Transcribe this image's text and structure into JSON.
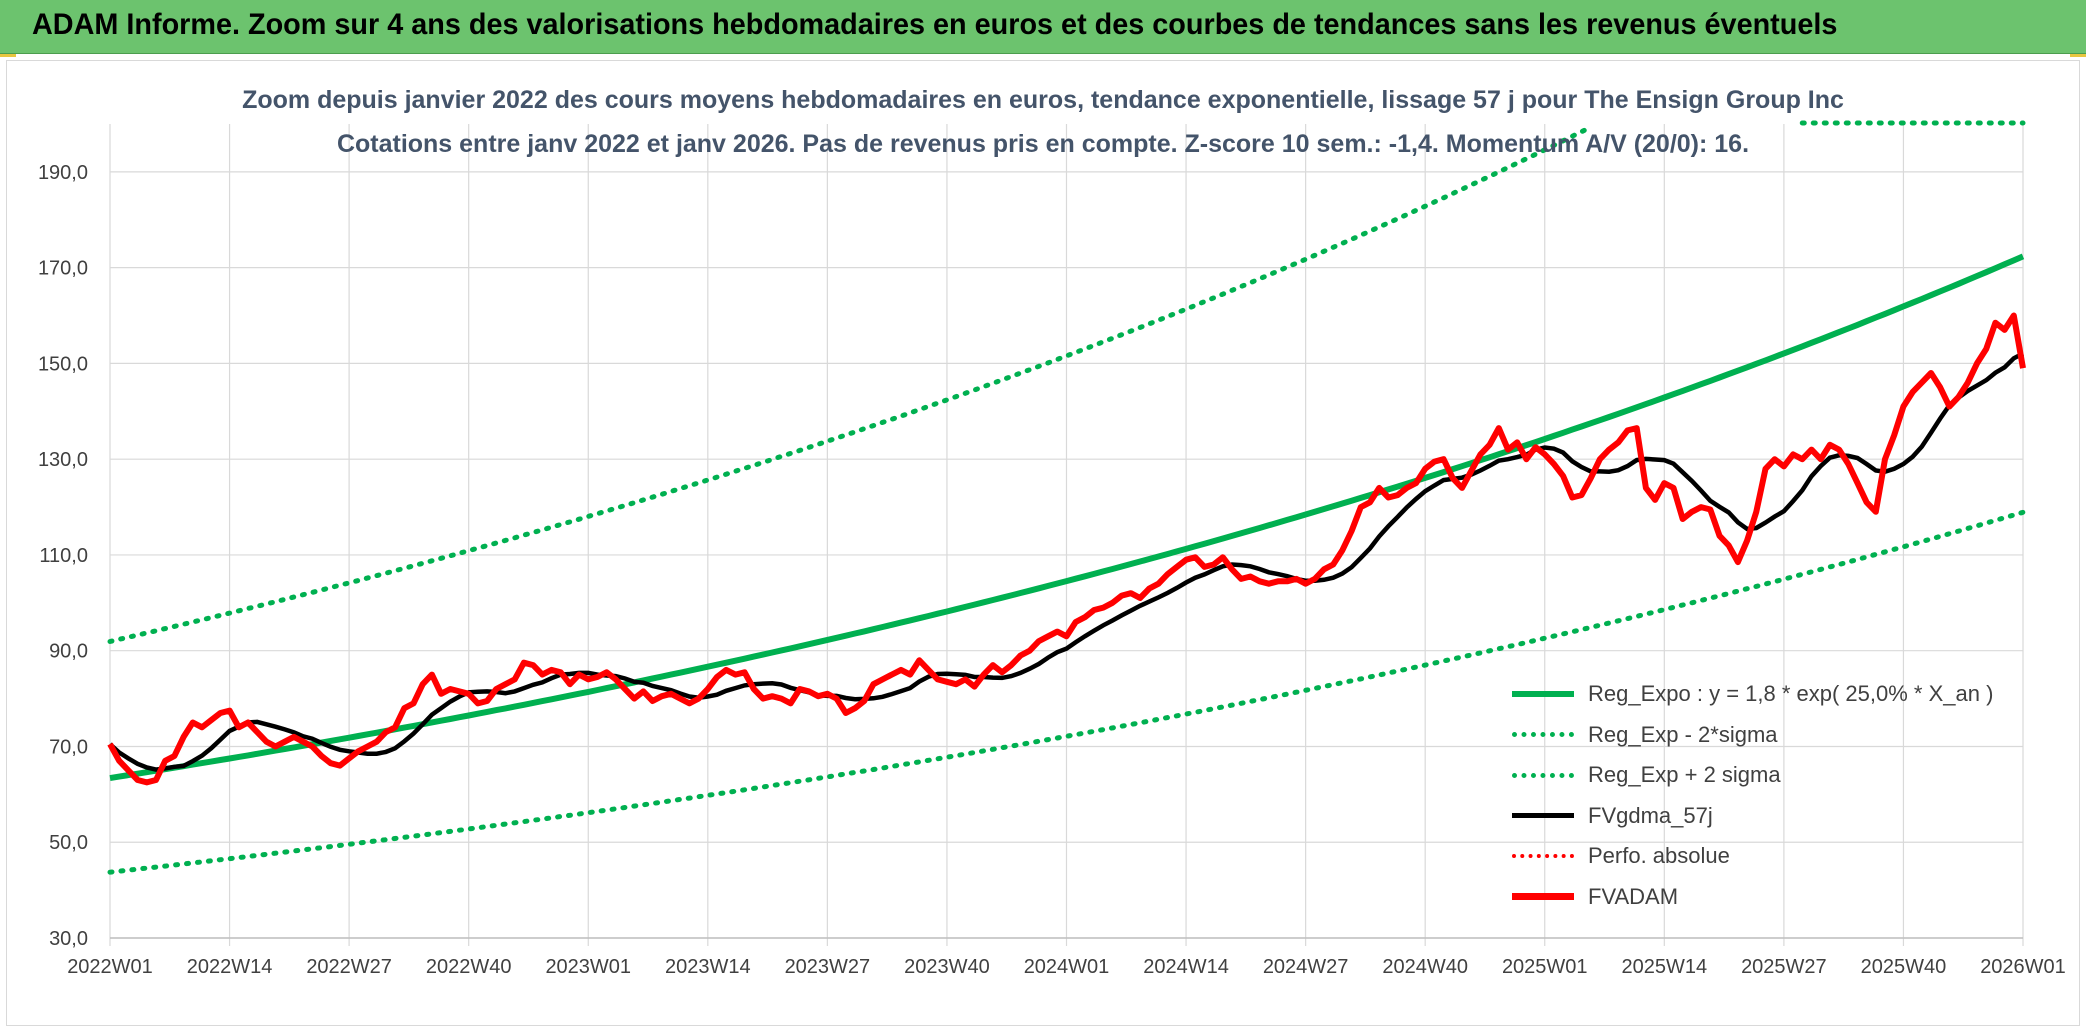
{
  "banner": {
    "title": "ADAM Informe. Zoom sur 4 ans des valorisations hebdomadaires en euros et des courbes de tendances sans les revenus éventuels"
  },
  "colors": {
    "banner": "#6cc36e",
    "trend": "#00b050",
    "smooth": "#000000",
    "price": "#ff0000",
    "grid": "#d9d9d9",
    "text": "#404040",
    "title": "#44546a"
  },
  "chart_data": {
    "type": "line",
    "title": "Zoom depuis janvier 2022 des cours moyens hebdomadaires en euros, tendance exponentielle, lissage 57 j pour The Ensign Group Inc",
    "subtitle": "Cotations entre janv 2022 et janv 2026. Pas de revenus pris en compte. Z-score 10 sem.: -1,4. Momentum A/V (20/0): 16.",
    "xlabel": "",
    "ylabel": "",
    "ylim": [
      30,
      200
    ],
    "yticks": [
      30,
      50,
      70,
      90,
      110,
      130,
      150,
      170,
      190
    ],
    "ytick_labels": [
      "30,0",
      "50,0",
      "70,0",
      "90,0",
      "110,0",
      "130,0",
      "150,0",
      "170,0",
      "190,0"
    ],
    "week_count": 209,
    "xtick_labels": [
      "2022W01",
      "2022W14",
      "2022W27",
      "2022W40",
      "2023W01",
      "2023W14",
      "2023W27",
      "2023W40",
      "2024W01",
      "2024W14",
      "2024W27",
      "2024W40",
      "2025W01",
      "2025W14",
      "2025W27",
      "2025W40",
      "2026W01"
    ],
    "xtick_index": [
      0,
      13,
      26,
      39,
      52,
      65,
      78,
      91,
      104,
      117,
      130,
      143,
      156,
      169,
      182,
      195,
      208
    ],
    "trend_model": {
      "a": 63.4,
      "annual_rate": 0.25,
      "weeks_per_year": 52
    },
    "band_factors": {
      "lower": 0.69,
      "upper": 1.45
    },
    "legend": [
      {
        "key": "trend",
        "label": "Reg_Expo : y = 1,8 * exp( 25,0% *  X_an )",
        "color": "#00b050",
        "style": "solid"
      },
      {
        "key": "lower",
        "label": "Reg_Exp - 2*sigma",
        "color": "#00b050",
        "style": "dotted"
      },
      {
        "key": "upper",
        "label": "Reg_Exp + 2 sigma",
        "color": "#00b050",
        "style": "dotted"
      },
      {
        "key": "smooth",
        "label": "FVgdma_57j",
        "color": "#000000",
        "style": "solid"
      },
      {
        "key": "perf",
        "label": "Perfo. absolue",
        "color": "#ff0000",
        "style": "dotted"
      },
      {
        "key": "price",
        "label": "FVADAM",
        "color": "#ff0000",
        "style": "solid"
      }
    ],
    "price_keypoints": [
      [
        0,
        70.5
      ],
      [
        1,
        67
      ],
      [
        2,
        65
      ],
      [
        3,
        63
      ],
      [
        4,
        62.5
      ],
      [
        5,
        63
      ],
      [
        6,
        67
      ],
      [
        7,
        68
      ],
      [
        8,
        72
      ],
      [
        9,
        75
      ],
      [
        10,
        74
      ],
      [
        11,
        75.5
      ],
      [
        12,
        77
      ],
      [
        13,
        77.5
      ],
      [
        14,
        74
      ],
      [
        15,
        75
      ],
      [
        16,
        73
      ],
      [
        17,
        71
      ],
      [
        18,
        70
      ],
      [
        19,
        71
      ],
      [
        20,
        72
      ],
      [
        21,
        71
      ],
      [
        22,
        70
      ],
      [
        23,
        68
      ],
      [
        24,
        66.5
      ],
      [
        25,
        66
      ],
      [
        26,
        67.5
      ],
      [
        27,
        69
      ],
      [
        28,
        70
      ],
      [
        29,
        71
      ],
      [
        30,
        73
      ],
      [
        31,
        74
      ],
      [
        32,
        78
      ],
      [
        33,
        79
      ],
      [
        34,
        83
      ],
      [
        35,
        85
      ],
      [
        36,
        81
      ],
      [
        37,
        82
      ],
      [
        38,
        81.5
      ],
      [
        39,
        81
      ],
      [
        40,
        79
      ],
      [
        41,
        79.5
      ],
      [
        42,
        82
      ],
      [
        43,
        83
      ],
      [
        44,
        84
      ],
      [
        45,
        87.5
      ],
      [
        46,
        87
      ],
      [
        47,
        85
      ],
      [
        48,
        86
      ],
      [
        49,
        85.5
      ],
      [
        50,
        83
      ],
      [
        51,
        85
      ],
      [
        52,
        84
      ],
      [
        53,
        84.5
      ],
      [
        54,
        85.5
      ],
      [
        55,
        84
      ],
      [
        56,
        82
      ],
      [
        57,
        80
      ],
      [
        58,
        81.5
      ],
      [
        59,
        79.5
      ],
      [
        60,
        80.5
      ],
      [
        61,
        81
      ],
      [
        62,
        80
      ],
      [
        63,
        79
      ],
      [
        64,
        80
      ],
      [
        65,
        82
      ],
      [
        66,
        84.5
      ],
      [
        67,
        86
      ],
      [
        68,
        85
      ],
      [
        69,
        85.5
      ],
      [
        70,
        82
      ],
      [
        71,
        80
      ],
      [
        72,
        80.5
      ],
      [
        73,
        80
      ],
      [
        74,
        79
      ],
      [
        75,
        82
      ],
      [
        76,
        81.5
      ],
      [
        77,
        80.5
      ],
      [
        78,
        81
      ],
      [
        79,
        80
      ],
      [
        80,
        77
      ],
      [
        81,
        78
      ],
      [
        82,
        79.5
      ],
      [
        83,
        83
      ],
      [
        84,
        84
      ],
      [
        85,
        85
      ],
      [
        86,
        86
      ],
      [
        87,
        85
      ],
      [
        88,
        88
      ],
      [
        89,
        86
      ],
      [
        90,
        84
      ],
      [
        91,
        83.5
      ],
      [
        92,
        83
      ],
      [
        93,
        84
      ],
      [
        94,
        82.5
      ],
      [
        95,
        85
      ],
      [
        96,
        87
      ],
      [
        97,
        85.5
      ],
      [
        98,
        87
      ],
      [
        99,
        89
      ],
      [
        100,
        90
      ],
      [
        101,
        92
      ],
      [
        102,
        93
      ],
      [
        103,
        94
      ],
      [
        104,
        93
      ],
      [
        105,
        96
      ],
      [
        106,
        97
      ],
      [
        107,
        98.5
      ],
      [
        108,
        99
      ],
      [
        109,
        100
      ],
      [
        110,
        101.5
      ],
      [
        111,
        102
      ],
      [
        112,
        101
      ],
      [
        113,
        103
      ],
      [
        114,
        104
      ],
      [
        115,
        106
      ],
      [
        116,
        107.5
      ],
      [
        117,
        109
      ],
      [
        118,
        109.5
      ],
      [
        119,
        107.5
      ],
      [
        120,
        108
      ],
      [
        121,
        109.5
      ],
      [
        122,
        107
      ],
      [
        123,
        105
      ],
      [
        124,
        105.5
      ],
      [
        125,
        104.5
      ],
      [
        126,
        104
      ],
      [
        127,
        104.5
      ],
      [
        128,
        104.5
      ],
      [
        129,
        105
      ],
      [
        130,
        104
      ],
      [
        131,
        105
      ],
      [
        132,
        107
      ],
      [
        133,
        108
      ],
      [
        134,
        111
      ],
      [
        135,
        115
      ],
      [
        136,
        120
      ],
      [
        137,
        121
      ],
      [
        138,
        124
      ],
      [
        139,
        122
      ],
      [
        140,
        122.5
      ],
      [
        141,
        124
      ],
      [
        142,
        125
      ],
      [
        143,
        128
      ],
      [
        144,
        129.5
      ],
      [
        145,
        130
      ],
      [
        146,
        126
      ],
      [
        147,
        124
      ],
      [
        148,
        127.5
      ],
      [
        149,
        131
      ],
      [
        150,
        133
      ],
      [
        151,
        136.5
      ],
      [
        152,
        132
      ],
      [
        153,
        133.5
      ],
      [
        154,
        130
      ],
      [
        155,
        132.5
      ],
      [
        156,
        131
      ],
      [
        157,
        129
      ],
      [
        158,
        126.5
      ],
      [
        159,
        122
      ],
      [
        160,
        122.5
      ],
      [
        161,
        126
      ],
      [
        162,
        130
      ],
      [
        163,
        132
      ],
      [
        164,
        133.5
      ],
      [
        165,
        136
      ],
      [
        166,
        136.5
      ],
      [
        167,
        124
      ],
      [
        168,
        121.5
      ],
      [
        169,
        125
      ],
      [
        170,
        124
      ],
      [
        171,
        117.5
      ],
      [
        172,
        119
      ],
      [
        173,
        120
      ],
      [
        174,
        119.5
      ],
      [
        175,
        114
      ],
      [
        176,
        112
      ],
      [
        177,
        108.5
      ],
      [
        178,
        113
      ],
      [
        179,
        119
      ],
      [
        180,
        128
      ],
      [
        181,
        130
      ],
      [
        182,
        128.5
      ],
      [
        183,
        131
      ],
      [
        184,
        130
      ],
      [
        185,
        132
      ],
      [
        186,
        130
      ],
      [
        187,
        133
      ],
      [
        188,
        132
      ],
      [
        189,
        129
      ],
      [
        190,
        125
      ],
      [
        191,
        121
      ],
      [
        192,
        119
      ],
      [
        193,
        130
      ],
      [
        194,
        135
      ],
      [
        195,
        141
      ],
      [
        196,
        144
      ],
      [
        197,
        146
      ],
      [
        198,
        148
      ],
      [
        199,
        145
      ],
      [
        200,
        141
      ],
      [
        201,
        143
      ],
      [
        202,
        146
      ],
      [
        203,
        150
      ],
      [
        204,
        153
      ],
      [
        205,
        158.5
      ],
      [
        206,
        157
      ],
      [
        207,
        160
      ],
      [
        208,
        149
      ]
    ]
  }
}
